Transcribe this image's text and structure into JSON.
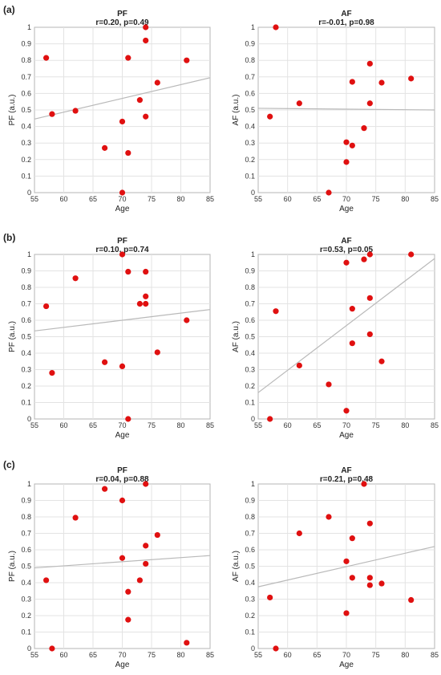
{
  "panel_labels": [
    "(a)",
    "(b)",
    "(c)"
  ],
  "colors": {
    "point": "#e01010",
    "fit_line": "#b9b9b9",
    "grid": "#e3e3e3"
  },
  "chart_data": [
    {
      "type": "scatter",
      "panel": "(a)",
      "title": "PF",
      "subtitle": "r=0.20, p=0.49",
      "xlabel": "Age",
      "ylabel": "PF (a.u.)",
      "xlim": [
        55,
        85
      ],
      "ylim": [
        0,
        1
      ],
      "grid": true,
      "xticks": [
        "55",
        "60",
        "65",
        "70",
        "75",
        "80",
        "85"
      ],
      "yticks": [
        "0",
        "0.1",
        "0.2",
        "0.3",
        "0.4",
        "0.5",
        "0.6",
        "0.7",
        "0.8",
        "0.9",
        "1"
      ],
      "points": [
        [
          57,
          0.815
        ],
        [
          58,
          0.475
        ],
        [
          62,
          0.495
        ],
        [
          67,
          0.27
        ],
        [
          70,
          0.43
        ],
        [
          70,
          0
        ],
        [
          71,
          0.815
        ],
        [
          71,
          0.24
        ],
        [
          73,
          0.56
        ],
        [
          74,
          1
        ],
        [
          74,
          0.92
        ],
        [
          74,
          0.46
        ],
        [
          76,
          0.665
        ],
        [
          81,
          0.8
        ]
      ],
      "fit": [
        [
          55,
          0.445
        ],
        [
          85,
          0.695
        ]
      ]
    },
    {
      "type": "scatter",
      "panel": "(a)",
      "title": "AF",
      "subtitle": "r=-0.01, p=0.98",
      "xlabel": "Age",
      "ylabel": "AF (a.u.)",
      "xlim": [
        55,
        85
      ],
      "ylim": [
        0,
        1
      ],
      "grid": true,
      "xticks": [
        "55",
        "60",
        "65",
        "70",
        "75",
        "80",
        "85"
      ],
      "yticks": [
        "0",
        "0.1",
        "0.2",
        "0.3",
        "0.4",
        "0.5",
        "0.6",
        "0.7",
        "0.8",
        "0.9",
        "1"
      ],
      "points": [
        [
          57,
          0.46
        ],
        [
          58,
          1
        ],
        [
          62,
          0.54
        ],
        [
          67,
          0
        ],
        [
          70,
          0.305
        ],
        [
          70,
          0.185
        ],
        [
          71,
          0.67
        ],
        [
          71,
          0.285
        ],
        [
          73,
          0.39
        ],
        [
          74,
          0.78
        ],
        [
          74,
          0.54
        ],
        [
          76,
          0.665
        ],
        [
          81,
          0.69
        ]
      ],
      "fit": [
        [
          55,
          0.51
        ],
        [
          85,
          0.5
        ]
      ]
    },
    {
      "type": "scatter",
      "panel": "(b)",
      "title": "PF",
      "subtitle": "r=0.10, p=0.74",
      "xlabel": "Age",
      "ylabel": "PF (a.u.)",
      "xlim": [
        55,
        85
      ],
      "ylim": [
        0,
        1
      ],
      "grid": true,
      "xticks": [
        "55",
        "60",
        "65",
        "70",
        "75",
        "80",
        "85"
      ],
      "yticks": [
        "0",
        "0.1",
        "0.2",
        "0.3",
        "0.4",
        "0.5",
        "0.6",
        "0.7",
        "0.8",
        "0.9",
        "1"
      ],
      "points": [
        [
          57,
          0.685
        ],
        [
          58,
          0.28
        ],
        [
          62,
          0.855
        ],
        [
          67,
          0.345
        ],
        [
          70,
          1
        ],
        [
          70,
          0.32
        ],
        [
          71,
          0.895
        ],
        [
          71,
          0
        ],
        [
          73,
          0.7
        ],
        [
          74,
          0.895
        ],
        [
          74,
          0.745
        ],
        [
          74,
          0.7
        ],
        [
          76,
          0.405
        ],
        [
          81,
          0.6
        ]
      ],
      "fit": [
        [
          55,
          0.535
        ],
        [
          85,
          0.665
        ]
      ]
    },
    {
      "type": "scatter",
      "panel": "(b)",
      "title": "AF",
      "subtitle": "r=0.53, p=0.05",
      "xlabel": "Age",
      "ylabel": "AF (a.u.)",
      "xlim": [
        55,
        85
      ],
      "ylim": [
        0,
        1
      ],
      "grid": true,
      "xticks": [
        "55",
        "60",
        "65",
        "70",
        "75",
        "80",
        "85"
      ],
      "yticks": [
        "0",
        "0.1",
        "0.2",
        "0.3",
        "0.4",
        "0.5",
        "0.6",
        "0.7",
        "0.8",
        "0.9",
        "1"
      ],
      "points": [
        [
          57,
          0
        ],
        [
          58,
          0.655
        ],
        [
          62,
          0.325
        ],
        [
          67,
          0.21
        ],
        [
          70,
          0.95
        ],
        [
          70,
          0.05
        ],
        [
          71,
          0.67
        ],
        [
          71,
          0.46
        ],
        [
          73,
          0.97
        ],
        [
          74,
          1
        ],
        [
          74,
          0.735
        ],
        [
          74,
          0.515
        ],
        [
          76,
          0.35
        ],
        [
          81,
          1
        ]
      ],
      "fit": [
        [
          55,
          0.16
        ],
        [
          85,
          0.975
        ]
      ]
    },
    {
      "type": "scatter",
      "panel": "(c)",
      "title": "PF",
      "subtitle": "r=0.04, p=0.88",
      "xlabel": "Age",
      "ylabel": "PF (a.u.)",
      "xlim": [
        55,
        85
      ],
      "ylim": [
        0,
        1
      ],
      "grid": true,
      "xticks": [
        "55",
        "60",
        "65",
        "70",
        "75",
        "80",
        "85"
      ],
      "yticks": [
        "0",
        "0.1",
        "0.2",
        "0.3",
        "0.4",
        "0.5",
        "0.6",
        "0.7",
        "0.8",
        "0.9",
        "1"
      ],
      "points": [
        [
          57,
          0.415
        ],
        [
          58,
          0
        ],
        [
          62,
          0.795
        ],
        [
          67,
          0.97
        ],
        [
          70,
          0.9
        ],
        [
          70,
          0.55
        ],
        [
          71,
          0.345
        ],
        [
          71,
          0.175
        ],
        [
          73,
          0.415
        ],
        [
          74,
          1
        ],
        [
          74,
          0.625
        ],
        [
          74,
          0.515
        ],
        [
          76,
          0.69
        ],
        [
          81,
          0.035
        ]
      ],
      "fit": [
        [
          55,
          0.49
        ],
        [
          85,
          0.565
        ]
      ]
    },
    {
      "type": "scatter",
      "panel": "(c)",
      "title": "AF",
      "subtitle": "r=0.21, p=0.48",
      "xlabel": "Age",
      "ylabel": "AF (a.u.)",
      "xlim": [
        55,
        85
      ],
      "ylim": [
        0,
        1
      ],
      "grid": true,
      "xticks": [
        "55",
        "60",
        "65",
        "70",
        "75",
        "80",
        "85"
      ],
      "yticks": [
        "0",
        "0.1",
        "0.2",
        "0.3",
        "0.4",
        "0.5",
        "0.6",
        "0.7",
        "0.8",
        "0.9",
        "1"
      ],
      "points": [
        [
          57,
          0.31
        ],
        [
          58,
          0
        ],
        [
          62,
          0.7
        ],
        [
          67,
          0.8
        ],
        [
          70,
          0.53
        ],
        [
          70,
          0.215
        ],
        [
          71,
          0.67
        ],
        [
          71,
          0.43
        ],
        [
          73,
          1
        ],
        [
          74,
          0.76
        ],
        [
          74,
          0.43
        ],
        [
          74,
          0.385
        ],
        [
          76,
          0.395
        ],
        [
          81,
          0.295
        ]
      ],
      "fit": [
        [
          55,
          0.375
        ],
        [
          85,
          0.62
        ]
      ]
    }
  ]
}
